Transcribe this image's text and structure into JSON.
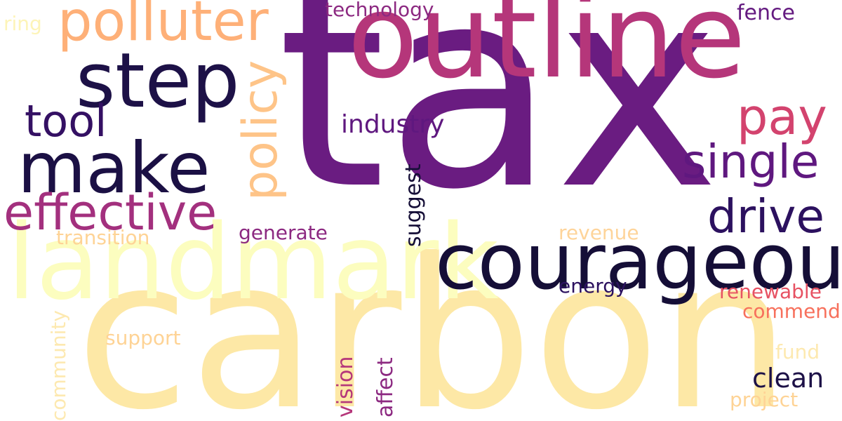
{
  "words": [
    {
      "key": "tax",
      "text": "tax",
      "color": "#6a1c81"
    },
    {
      "key": "carbon",
      "text": "carbon",
      "color": "#fde8a6"
    },
    {
      "key": "outline",
      "text": "outline",
      "color": "#b5367a"
    },
    {
      "key": "landmark",
      "text": "landmark",
      "color": "#fcfdbf"
    },
    {
      "key": "courageous",
      "text": "courageous",
      "color": "#150e37"
    },
    {
      "key": "step",
      "text": "step",
      "color": "#1d1147"
    },
    {
      "key": "make",
      "text": "make",
      "color": "#1b1044"
    },
    {
      "key": "polluter",
      "text": "polluter",
      "color": "#feb078"
    },
    {
      "key": "effective",
      "text": "effective",
      "color": "#a3307e"
    },
    {
      "key": "policy",
      "text": "policy",
      "color": "#fec488"
    },
    {
      "key": "pay",
      "text": "pay",
      "color": "#d3436e"
    },
    {
      "key": "single",
      "text": "single",
      "color": "#5f187f"
    },
    {
      "key": "drive",
      "text": "drive",
      "color": "#2c115f"
    },
    {
      "key": "tool",
      "text": "tool",
      "color": "#341063"
    },
    {
      "key": "industry",
      "text": "industry",
      "color": "#5f187f"
    },
    {
      "key": "technology",
      "text": "technology",
      "color": "#8c2981"
    },
    {
      "key": "fence",
      "text": "fence",
      "color": "#641a80"
    },
    {
      "key": "ring",
      "text": "ring",
      "color": "#fdf4b8"
    },
    {
      "key": "transition",
      "text": "transition",
      "color": "#fed395"
    },
    {
      "key": "generate",
      "text": "generate",
      "color": "#8c2981"
    },
    {
      "key": "suggest",
      "text": "suggest",
      "color": "#150e37"
    },
    {
      "key": "revenue",
      "text": "revenue",
      "color": "#fed49a"
    },
    {
      "key": "energy",
      "text": "energy",
      "color": "#2c115f"
    },
    {
      "key": "renewable",
      "text": "renewable",
      "color": "#e75263"
    },
    {
      "key": "commend",
      "text": "commend",
      "color": "#f7705c"
    },
    {
      "key": "community",
      "text": "community",
      "color": "#fde9b0"
    },
    {
      "key": "support",
      "text": "support",
      "color": "#fed395"
    },
    {
      "key": "vision",
      "text": "vision",
      "color": "#b5367a"
    },
    {
      "key": "affect",
      "text": "affect",
      "color": "#8c2981"
    },
    {
      "key": "fund",
      "text": "fund",
      "color": "#fde9b0"
    },
    {
      "key": "clean",
      "text": "clean",
      "color": "#1d1147"
    },
    {
      "key": "project",
      "text": "project",
      "color": "#fed395"
    }
  ]
}
